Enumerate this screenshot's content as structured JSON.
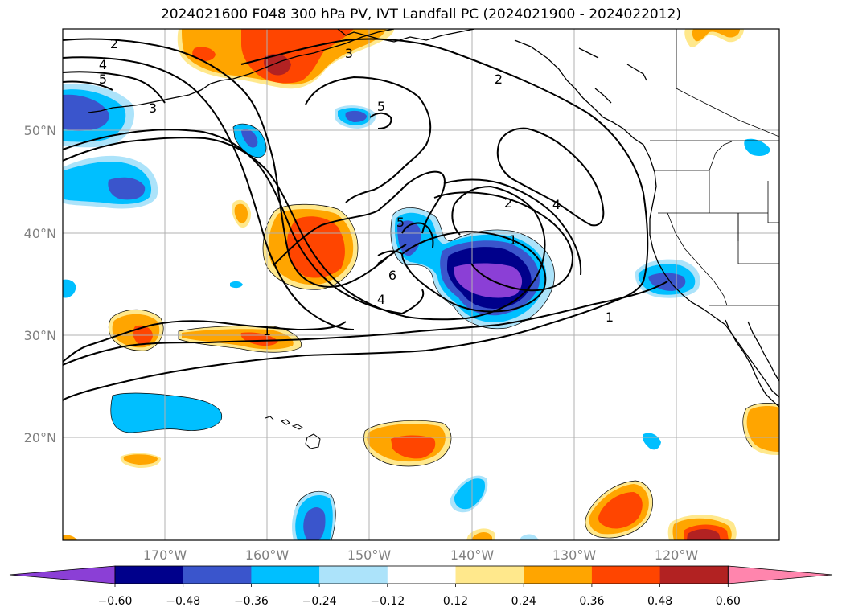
{
  "title": "2024021600 F048 300 hPa PV, IVT Landfall PC (2024021900 - 2024022012)",
  "lat_labels": [
    "50°N",
    "40°N",
    "30°N",
    "20°N"
  ],
  "lon_labels": [
    "170°W",
    "160°W",
    "150°W",
    "140°W",
    "130°W",
    "120°W"
  ],
  "colorbar": {
    "tick_labels": [
      "−0.60",
      "−0.48",
      "−0.36",
      "−0.24",
      "−0.12",
      "0.12",
      "0.24",
      "0.36",
      "0.48",
      "0.60"
    ],
    "colors": [
      "#8b3fd6",
      "#00008b",
      "#3a55cc",
      "#00bfff",
      "#ace3fa",
      "#ffffff",
      "#ffe88c",
      "#ffa500",
      "#ff4500",
      "#b22222",
      "#ff85ad"
    ]
  },
  "contour_labels": [
    "2",
    "4",
    "5",
    "3",
    "3",
    "5",
    "2",
    "2",
    "4",
    "1",
    "5",
    "6",
    "4",
    "1",
    "1"
  ],
  "fill_colors": {
    "light_blue": "#ace3fa",
    "blue": "#00bfff",
    "mid_blue": "#3a55cc",
    "navy": "#00008b",
    "purple": "#8b3fd6",
    "light_orange": "#ffe88c",
    "orange": "#ffa500",
    "red_orange": "#ff4500",
    "dark_red": "#b22222"
  }
}
